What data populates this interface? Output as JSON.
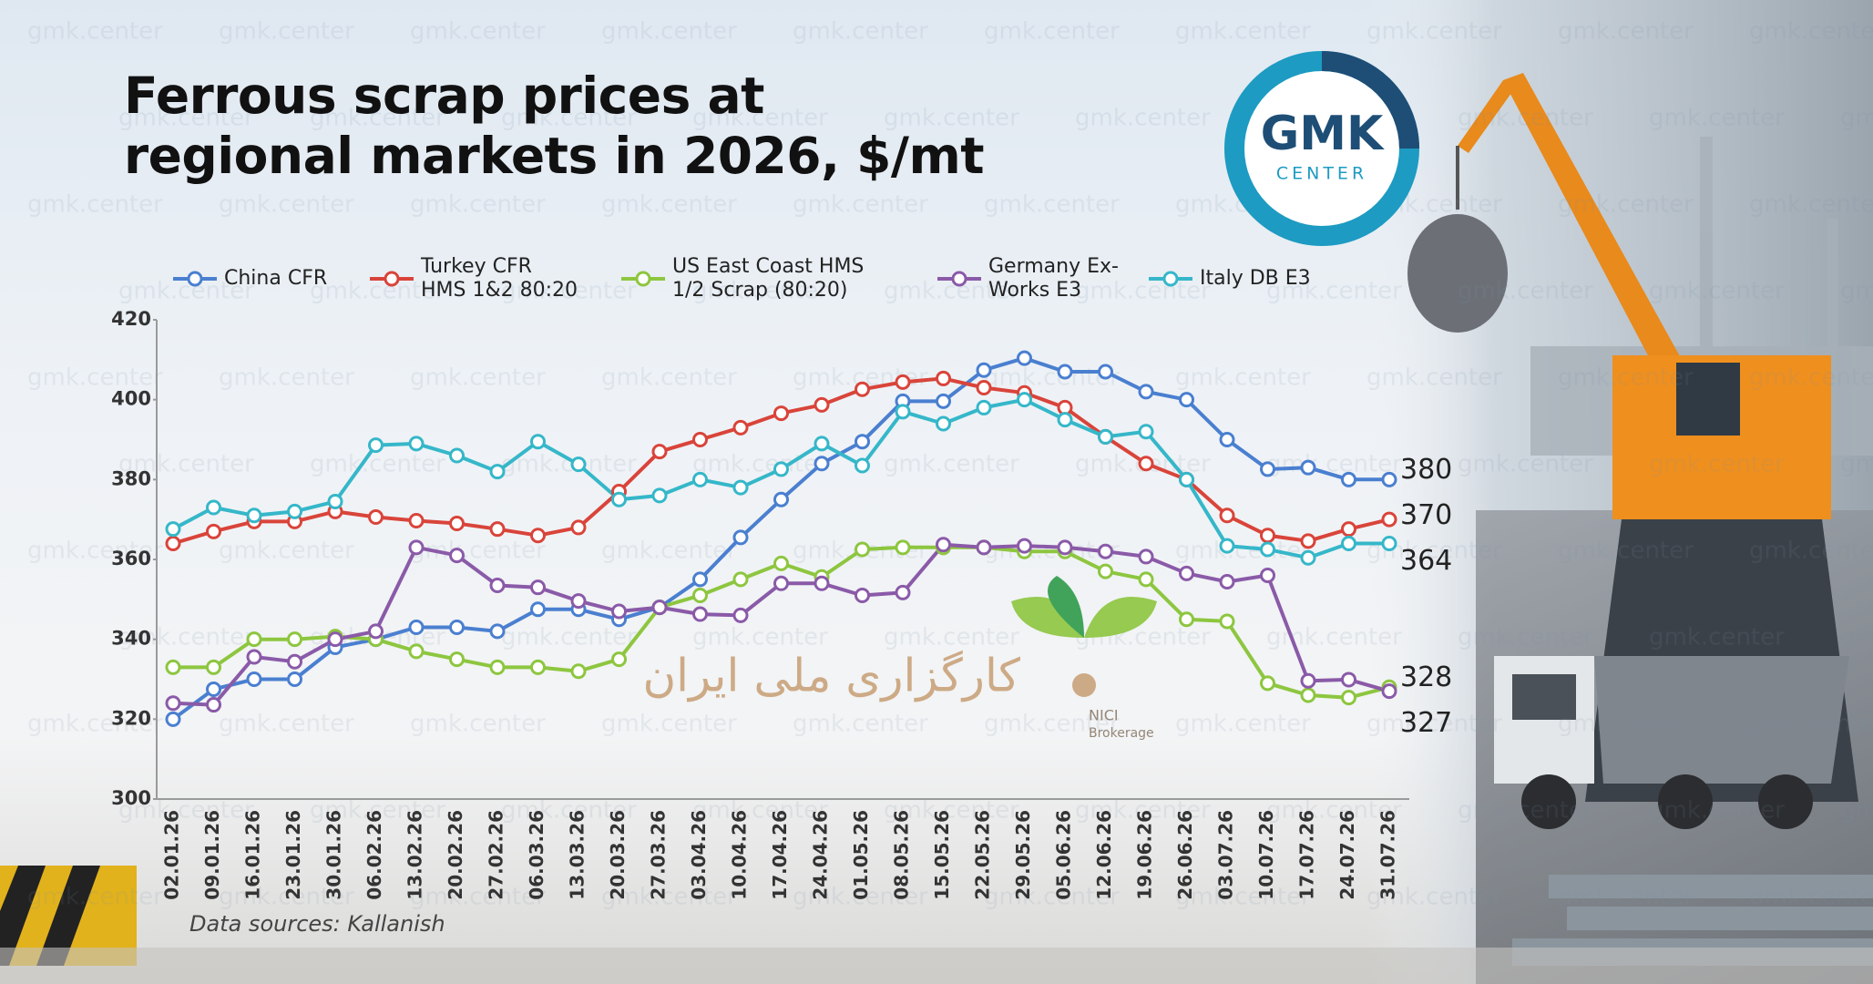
{
  "chart_data": {
    "type": "line",
    "title": "Ferrous scrap prices at\nregional markets in 2026, $/mt",
    "source": "Data sources: Kallanish",
    "logo": {
      "line1": "GMK",
      "line2": "CENTER"
    },
    "watermark": "gmk.center",
    "partner_logo": {
      "name": "NICI",
      "subtitle": "Brokerage",
      "persian": "کارگزاری ملی ایران"
    },
    "categories": [
      "02.01.26",
      "09.01.26",
      "16.01.26",
      "23.01.26",
      "30.01.26",
      "06.02.26",
      "13.02.26",
      "20.02.26",
      "27.02.26",
      "06.03.26",
      "13.03.26",
      "20.03.26",
      "27.03.26",
      "03.04.26",
      "10.04.26",
      "17.04.26",
      "24.04.26",
      "01.05.26",
      "08.05.26",
      "15.05.26",
      "22.05.26",
      "29.05.26",
      "05.06.26",
      "12.06.26",
      "19.06.26",
      "26.06.26",
      "03.07.26",
      "10.07.26",
      "17.07.26",
      "24.07.26",
      "31.07.26"
    ],
    "series": [
      {
        "name": "China CFR",
        "color": "#4a7fd0",
        "values": [
          320,
          327.5,
          330,
          330,
          338,
          340,
          343,
          343,
          342,
          347.5,
          347.5,
          345,
          348,
          355,
          365.5,
          375,
          384,
          389.5,
          399.6,
          399.6,
          407.4,
          410.4,
          407,
          407,
          402,
          400,
          390,
          382.6,
          383,
          380,
          380
        ]
      },
      {
        "name": "Turkey CFR\nHMS 1&2 80:20",
        "color": "#d9443a",
        "values": [
          364,
          367,
          369.5,
          369.5,
          372,
          370.6,
          369.7,
          369,
          367.6,
          366,
          368,
          377,
          387,
          390,
          393,
          396.6,
          398.7,
          402.6,
          404.4,
          405.3,
          403,
          401.7,
          398,
          390.7,
          384,
          380,
          371,
          366,
          364.6,
          367.6,
          370
        ]
      },
      {
        "name": "US East Coast HMS\n1/2 Scrap (80:20)",
        "color": "#8dc63f",
        "values": [
          333,
          333,
          340,
          340,
          340.7,
          340,
          337,
          335,
          333,
          333,
          332,
          335,
          348,
          351,
          355,
          359,
          355.6,
          362.5,
          363,
          363,
          363,
          362,
          362,
          357,
          355,
          345,
          344.5,
          329,
          326,
          325.4,
          328
        ]
      },
      {
        "name": "Germany Ex-\nWorks E3",
        "color": "#8a5aa8",
        "values": [
          324,
          323.6,
          335.6,
          334.4,
          340,
          342,
          363,
          361,
          353.5,
          353,
          349.6,
          347,
          348,
          346.3,
          346,
          354,
          354,
          351,
          351.7,
          363.7,
          363,
          363.4,
          363,
          362,
          360.7,
          356.5,
          354.4,
          356,
          329.6,
          329.9,
          327
        ]
      },
      {
        "name": "Italy DB E3",
        "color": "#35b7c9",
        "values": [
          367.6,
          373,
          371,
          372,
          374.5,
          388.6,
          389,
          386,
          382,
          389.5,
          383.8,
          375,
          376,
          380,
          378,
          382.6,
          389,
          383.5,
          397,
          394,
          398,
          400,
          395,
          390.7,
          392,
          380,
          363.4,
          362.5,
          360.4,
          364,
          364
        ]
      }
    ],
    "end_labels": true,
    "ylim": [
      300,
      420
    ],
    "yticks": [
      300,
      320,
      340,
      360,
      380,
      400,
      420
    ],
    "grid": false
  }
}
